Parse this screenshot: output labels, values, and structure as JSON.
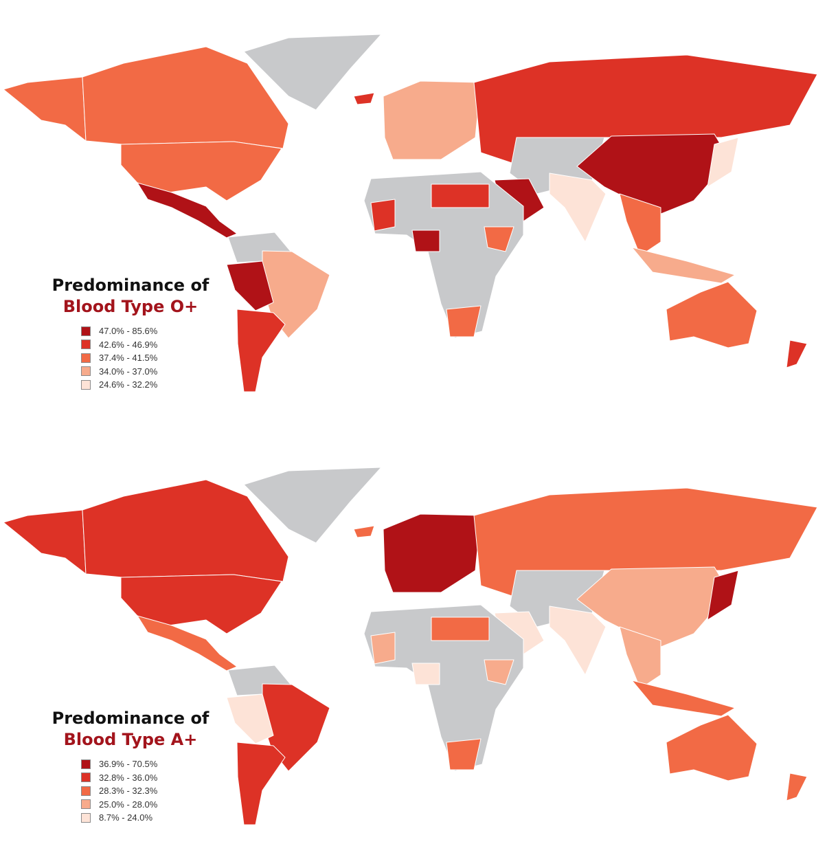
{
  "colors": {
    "level_1": "#b01217",
    "level_2": "#dd3226",
    "level_3": "#f26a45",
    "level_4": "#f7ab8c",
    "level_5": "#fde3d7",
    "no_data": "#c8c9cb"
  },
  "maps": [
    {
      "title_line1": "Predominance of",
      "title_line2": "Blood Type O+",
      "legend": [
        "47.0% - 85.6%",
        "42.6% - 46.9%",
        "37.4% - 41.5%",
        "34.0% - 37.0%",
        "24.6% - 32.2%"
      ],
      "region_levels": {
        "alaska": 3,
        "canada": 3,
        "usa": 3,
        "mexico": 1,
        "greenland": 0,
        "northern-south-america": 0,
        "brazil": 4,
        "peru-bolivia": 1,
        "argentina-chile": 2,
        "europe": 4,
        "russia": 2,
        "central-asia": 0,
        "china-mongolia": 1,
        "india": 5,
        "southeast-asia": 3,
        "arabia": 1,
        "africa": 0,
        "north-africa": 2,
        "nigeria": 1,
        "ethiopia": 3,
        "south-africa": 3,
        "mali": 2,
        "australia": 3,
        "new-zealand": 2,
        "indonesia": 4,
        "japan": 5,
        "iceland": 2
      }
    },
    {
      "title_line1": "Predominance of",
      "title_line2": "Blood Type A+",
      "legend": [
        "36.9% - 70.5%",
        "32.8% - 36.0%",
        "28.3% - 32.3%",
        "25.0% - 28.0%",
        "8.7% - 24.0%"
      ],
      "region_levels": {
        "alaska": 2,
        "canada": 2,
        "usa": 2,
        "mexico": 3,
        "greenland": 0,
        "northern-south-america": 0,
        "brazil": 2,
        "peru-bolivia": 5,
        "argentina-chile": 2,
        "europe": 1,
        "russia": 3,
        "central-asia": 0,
        "china-mongolia": 4,
        "india": 5,
        "southeast-asia": 4,
        "arabia": 5,
        "africa": 0,
        "north-africa": 3,
        "nigeria": 5,
        "ethiopia": 4,
        "south-africa": 3,
        "mali": 4,
        "australia": 3,
        "new-zealand": 3,
        "indonesia": 3,
        "japan": 1,
        "iceland": 3
      }
    }
  ]
}
